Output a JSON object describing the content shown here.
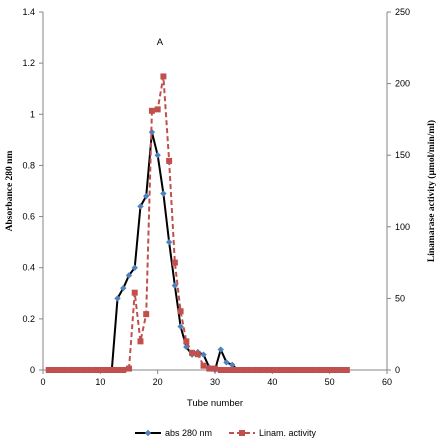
{
  "chart_data": {
    "type": "line",
    "xlabel": "Tube number",
    "ylabel_left": "Absorbance 280 nm",
    "ylabel_right": "Linamarase activity (µmol/min/ml)",
    "xlim": [
      0,
      60
    ],
    "xticks": [
      0,
      10,
      20,
      30,
      40,
      50,
      60
    ],
    "ylim_left": [
      0,
      1.4
    ],
    "yticks_left": [
      0,
      0.2,
      0.4,
      0.6,
      0.8,
      1,
      1.2,
      1.4
    ],
    "ylim_right": [
      0,
      250
    ],
    "yticks_right": [
      0,
      50,
      100,
      150,
      200,
      250
    ],
    "grid": false,
    "legend_position": "bottom",
    "annotation": {
      "text": "A",
      "x": 20.4,
      "y": 1.27,
      "axis": "left"
    },
    "series": [
      {
        "name": "abs 280 nm",
        "axis": "left",
        "color": "#000000",
        "marker_color": "#4F81BD",
        "marker": "diamond",
        "line_style": "solid",
        "points": [
          [
            1,
            0
          ],
          [
            2,
            0
          ],
          [
            3,
            0
          ],
          [
            4,
            0
          ],
          [
            5,
            0
          ],
          [
            6,
            0
          ],
          [
            7,
            0
          ],
          [
            8,
            0
          ],
          [
            9,
            0
          ],
          [
            10,
            0
          ],
          [
            11,
            0
          ],
          [
            12,
            0
          ],
          [
            13,
            0.28
          ],
          [
            14,
            0.32
          ],
          [
            15,
            0.37
          ],
          [
            16,
            0.4
          ],
          [
            17,
            0.64
          ],
          [
            18,
            0.68
          ],
          [
            19,
            0.93
          ],
          [
            20,
            0.84
          ],
          [
            21,
            0.69
          ],
          [
            22,
            0.5
          ],
          [
            23,
            0.33
          ],
          [
            24,
            0.17
          ],
          [
            25,
            0.09
          ],
          [
            26,
            0.06
          ],
          [
            27,
            0.07
          ],
          [
            28,
            0.06
          ],
          [
            29,
            0.01
          ],
          [
            30,
            0
          ],
          [
            31,
            0.08
          ],
          [
            32,
            0.03
          ],
          [
            33,
            0.02
          ],
          [
            34,
            0
          ],
          [
            35,
            0
          ],
          [
            36,
            0
          ],
          [
            37,
            0
          ],
          [
            38,
            0
          ],
          [
            39,
            0
          ],
          [
            40,
            0
          ],
          [
            41,
            0
          ],
          [
            42,
            0
          ],
          [
            43,
            0
          ],
          [
            44,
            0
          ],
          [
            45,
            0
          ],
          [
            46,
            0
          ],
          [
            47,
            0
          ],
          [
            48,
            0
          ],
          [
            49,
            0
          ],
          [
            50,
            0
          ],
          [
            51,
            0
          ],
          [
            52,
            0
          ],
          [
            53,
            0
          ]
        ]
      },
      {
        "name": "Linam. activity",
        "axis": "right",
        "color": "#C0504D",
        "marker_color": "#C0504D",
        "marker": "square",
        "line_style": "dashed",
        "points": [
          [
            1,
            0
          ],
          [
            2,
            0
          ],
          [
            3,
            0
          ],
          [
            4,
            0
          ],
          [
            5,
            0
          ],
          [
            6,
            0
          ],
          [
            7,
            0
          ],
          [
            8,
            0
          ],
          [
            9,
            0
          ],
          [
            10,
            0
          ],
          [
            11,
            0
          ],
          [
            12,
            0
          ],
          [
            13,
            0
          ],
          [
            14,
            0
          ],
          [
            15,
            1
          ],
          [
            16,
            54
          ],
          [
            17,
            20
          ],
          [
            18,
            39
          ],
          [
            19,
            181
          ],
          [
            20,
            182
          ],
          [
            21,
            205
          ],
          [
            22,
            146
          ],
          [
            23,
            75
          ],
          [
            24,
            41
          ],
          [
            25,
            20
          ],
          [
            26,
            12
          ],
          [
            27,
            11
          ],
          [
            28,
            3
          ],
          [
            29,
            1
          ],
          [
            30,
            1
          ],
          [
            31,
            0
          ],
          [
            32,
            0
          ],
          [
            33,
            0
          ],
          [
            34,
            0
          ],
          [
            35,
            0
          ],
          [
            36,
            0
          ],
          [
            37,
            0
          ],
          [
            38,
            0
          ],
          [
            39,
            0
          ],
          [
            40,
            0
          ],
          [
            41,
            0
          ],
          [
            42,
            0
          ],
          [
            43,
            0
          ],
          [
            44,
            0
          ],
          [
            45,
            0
          ],
          [
            46,
            0
          ],
          [
            47,
            0
          ],
          [
            48,
            0
          ],
          [
            49,
            0
          ],
          [
            50,
            0
          ],
          [
            51,
            0
          ],
          [
            52,
            0
          ],
          [
            53,
            0
          ]
        ]
      }
    ]
  }
}
